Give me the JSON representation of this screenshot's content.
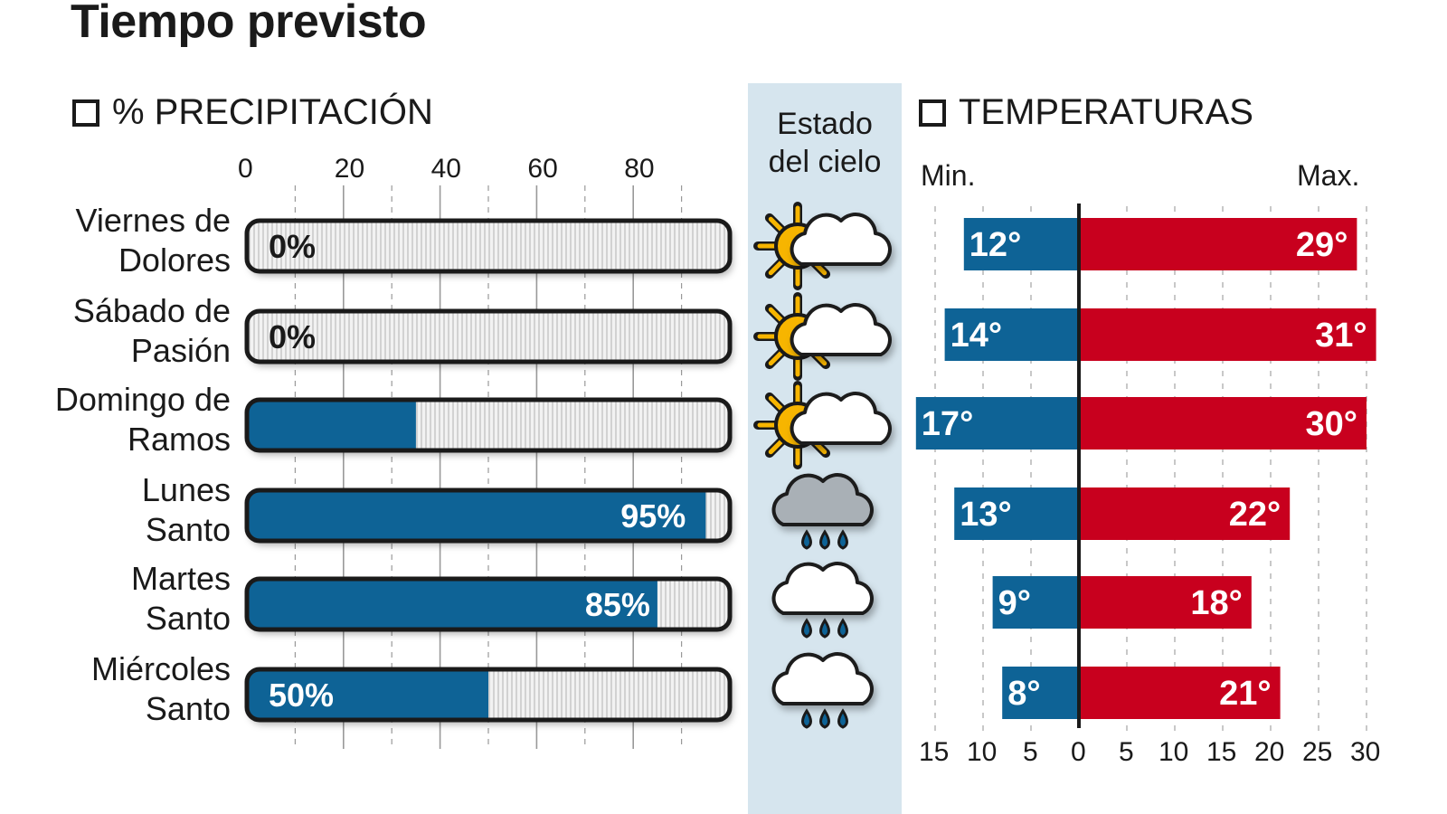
{
  "title": "Tiempo previsto",
  "precip_section": "% PRECIPITACIÓN",
  "sky_header": [
    "Estado",
    "del cielo"
  ],
  "temp_section": "TEMPERATURAS",
  "temp_min_label": "Min.",
  "temp_max_label": "Max.",
  "colors": {
    "precip": "#0e6396",
    "min": "#0e6396",
    "max": "#c8001e",
    "sky_band": "#d6e5ee"
  },
  "chart_data": [
    {
      "type": "bar",
      "title": "% PRECIPITACIÓN",
      "orientation": "horizontal",
      "categories": [
        "Viernes de Dolores",
        "Sábado de Pasión",
        "Domingo de Ramos",
        "Lunes Santo",
        "Martes Santo",
        "Miércoles Santo"
      ],
      "category_lines": [
        [
          "Viernes de",
          "Dolores"
        ],
        [
          "Sábado de",
          "Pasión"
        ],
        [
          "Domingo de",
          "Ramos"
        ],
        [
          "Lunes",
          "Santo"
        ],
        [
          "Martes",
          "Santo"
        ],
        [
          "Miércoles",
          "Santo"
        ]
      ],
      "values": [
        0,
        0,
        35,
        95,
        85,
        50
      ],
      "data_labels": [
        "0%",
        "0%",
        "35%",
        "95%",
        "85%",
        "50%"
      ],
      "xlim": [
        0,
        100
      ],
      "x_ticks": [
        "0",
        "20",
        "40",
        "60",
        "80"
      ],
      "grid": true
    },
    {
      "type": "table",
      "title": "Estado del cielo",
      "icons": [
        "sun-cloud-icon",
        "sun-cloud-icon",
        "sun-cloud-icon",
        "dark-rain-cloud-icon",
        "rain-cloud-icon",
        "rain-cloud-icon"
      ]
    },
    {
      "type": "bar",
      "title": "TEMPERATURAS",
      "orientation": "horizontal-diverging",
      "series": [
        {
          "name": "Min.",
          "values": [
            12,
            14,
            17,
            13,
            9,
            8
          ],
          "data_labels": [
            "12°",
            "14°",
            "17°",
            "13°",
            "9°",
            "8°"
          ]
        },
        {
          "name": "Max.",
          "values": [
            29,
            31,
            30,
            22,
            18,
            21
          ],
          "data_labels": [
            "29°",
            "31°",
            "30°",
            "22°",
            "18°",
            "21°"
          ]
        }
      ],
      "xlim_min": [
        15,
        0
      ],
      "xlim_max": [
        0,
        30
      ],
      "x_ticks": [
        "15",
        "10",
        "5",
        "0",
        "5",
        "10",
        "15",
        "20",
        "25",
        "30"
      ],
      "grid": true
    }
  ]
}
